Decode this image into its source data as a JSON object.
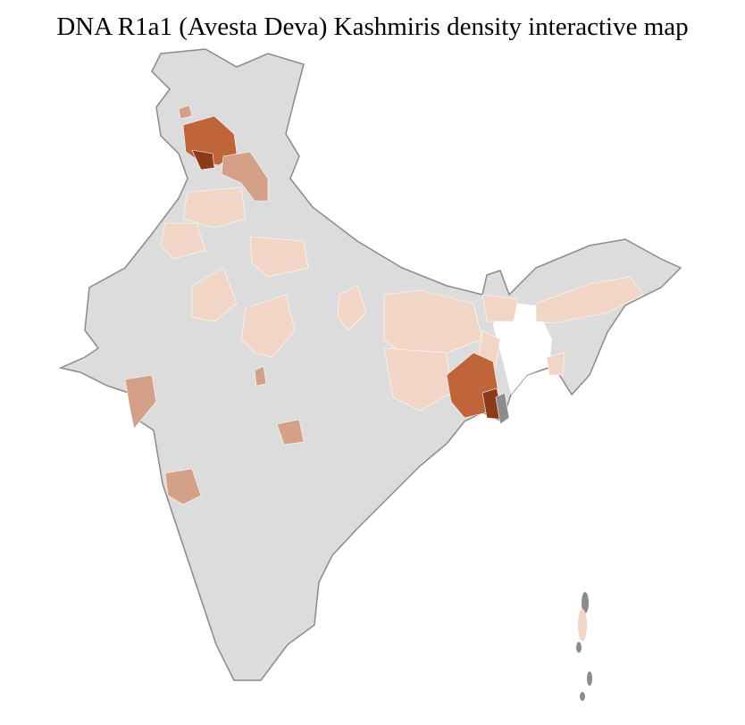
{
  "title": "DNA R1a1 (Avesta Deva) Kashmiris density interactive map",
  "colors": {
    "base": "#dcdcdc",
    "border": "#8a8a8a",
    "district_border": "#ffffff",
    "low": "#f1d6c8",
    "medium": "#d4a088",
    "high": "#c0653a",
    "highest": "#8b3a1a",
    "no_data": "#8c8c8c"
  }
}
